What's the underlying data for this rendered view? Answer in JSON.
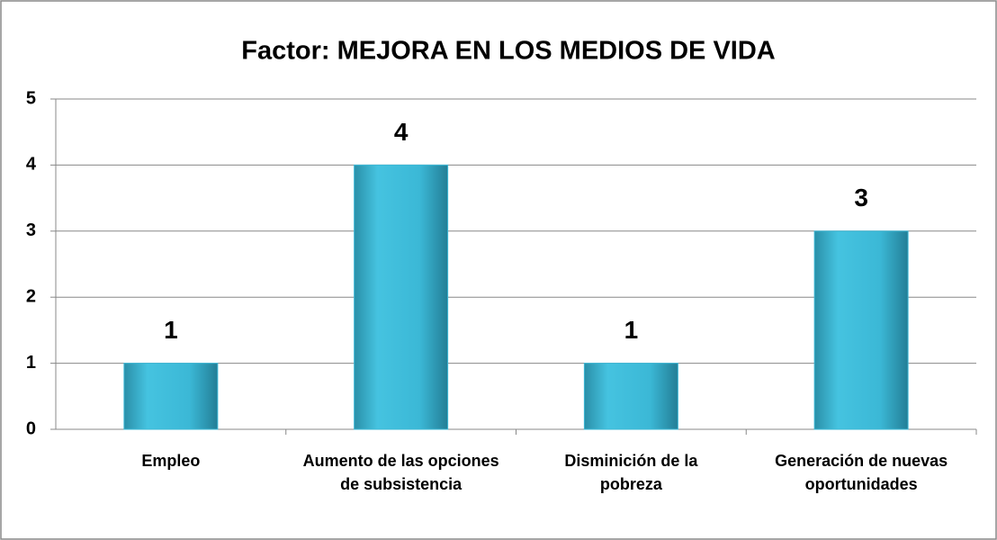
{
  "chart_data": {
    "type": "bar",
    "title": "Factor: MEJORA EN LOS MEDIOS DE VIDA",
    "categories": [
      "Empleo",
      "Aumento de las opciones de subsistencia",
      "Disminición de la pobreza",
      "Generación de nuevas oportunidades"
    ],
    "values": [
      1,
      4,
      1,
      3
    ],
    "color": "#3bb8d6",
    "ylim": [
      0,
      5
    ],
    "yticks": [
      0,
      1,
      2,
      3,
      4,
      5
    ],
    "grid": true
  }
}
